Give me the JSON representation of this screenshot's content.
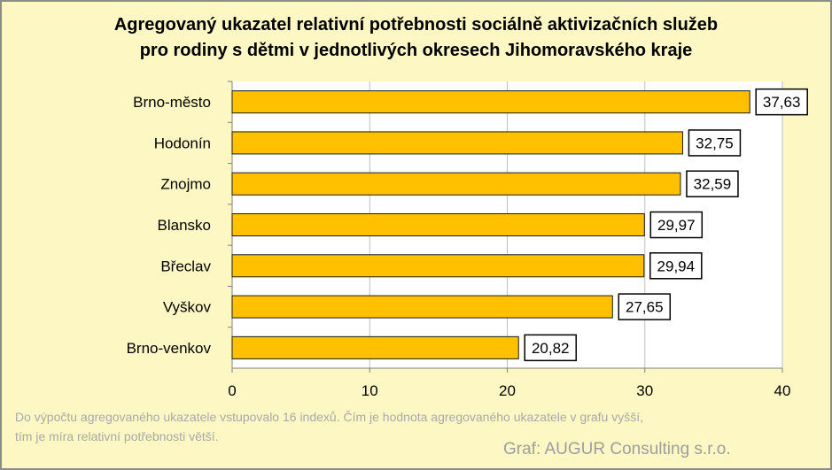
{
  "chart_data": {
    "type": "bar",
    "orientation": "horizontal",
    "title": [
      "Agregovaný ukazatel relativní potřebnosti sociálně aktivizačních služeb",
      "pro rodiny s dětmi v jednotlivých okresech Jihomoravského kraje"
    ],
    "categories": [
      "Brno-město",
      "Hodonín",
      "Znojmo",
      "Blansko",
      "Břeclav",
      "Vyškov",
      "Brno-venkov"
    ],
    "values": [
      37.63,
      32.75,
      32.59,
      29.97,
      29.94,
      27.65,
      20.82
    ],
    "data_labels": [
      "37,63",
      "32,75",
      "32,59",
      "29,97",
      "29,94",
      "27,65",
      "20,82"
    ],
    "xlim": [
      0,
      40
    ],
    "xticks": [
      0,
      10,
      20,
      30,
      40
    ],
    "xlabel": "",
    "ylabel": "",
    "grid": "vertical",
    "legend": "none",
    "colors": {
      "bar": "#ffc000",
      "bar_border": "#1a1a1a",
      "plot_background": "#ffffff",
      "chart_background": "#fcf7c3",
      "gridline": "#bfbfbf"
    }
  },
  "footnote": "Do výpočtu agregovaného ukazatele vstupovalo 16 indexů. Čím je hodnota agregovaného ukazatele v grafu vyšší, tím je míra relativní potřebnosti větší.",
  "credit": "Graf: AUGUR Consulting s.r.o."
}
